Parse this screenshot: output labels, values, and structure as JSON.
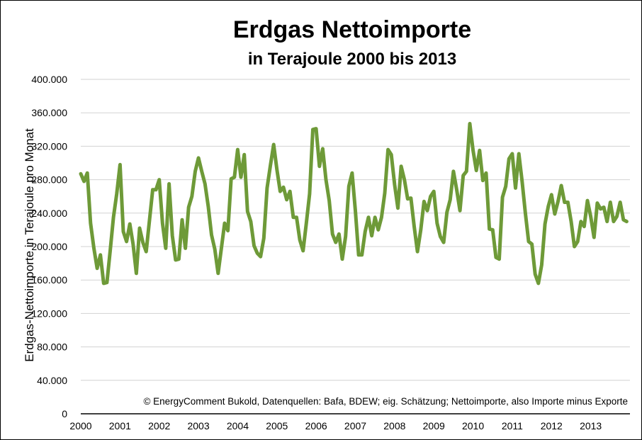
{
  "chart_data": {
    "type": "line",
    "title": "Erdgas Nettoimporte",
    "subtitle": "in Terajoule 2000 bis 2013",
    "ylabel": "Erdgas-Nettoimporte in Terajoule pro Monat",
    "xlabel": "",
    "ylim": [
      0,
      400000
    ],
    "yticks": [
      0,
      40000,
      80000,
      120000,
      160000,
      200000,
      240000,
      280000,
      320000,
      360000,
      400000
    ],
    "ytick_labels": [
      "0",
      "40.000",
      "80.000",
      "120.000",
      "160.000",
      "200.000",
      "240.000",
      "280.000",
      "320.000",
      "360.000",
      "400.000"
    ],
    "xlim": [
      2000,
      2014
    ],
    "xtick_labels": [
      "2000",
      "2001",
      "2002",
      "2003",
      "2004",
      "2005",
      "2006",
      "2007",
      "2008",
      "2009",
      "2010",
      "2011",
      "2012",
      "2013"
    ],
    "grid": "horizontal",
    "annotation": "© EnergyComment Bukold, Datenquellen: Bafa, BDEW; eig. Schätzung; Nettoimporte, also Importe minus Exporte",
    "series_color": "#6e9a38",
    "series": [
      {
        "values": [
          287000,
          278000,
          288000,
          228000,
          198000,
          174000,
          190000,
          156000,
          157000,
          195000,
          235000,
          263000,
          298000,
          218000,
          206000,
          227000,
          203000,
          168000,
          222000,
          205000,
          194000,
          231000,
          268000,
          268000,
          280000,
          228000,
          198000,
          275000,
          213000,
          184000,
          185000,
          232000,
          198000,
          247000,
          260000,
          290000,
          306000,
          290000,
          275000,
          248000,
          214000,
          197000,
          168000,
          198000,
          228000,
          219000,
          281000,
          283000,
          316000,
          283000,
          310000,
          242000,
          230000,
          201000,
          192000,
          188000,
          210000,
          270000,
          297000,
          322000,
          292000,
          266000,
          271000,
          256000,
          266000,
          235000,
          235000,
          208000,
          195000,
          228000,
          263000,
          340000,
          341000,
          296000,
          317000,
          280000,
          255000,
          215000,
          205000,
          215000,
          185000,
          212000,
          272000,
          288000,
          243000,
          190000,
          190000,
          218000,
          235000,
          213000,
          235000,
          220000,
          235000,
          264000,
          316000,
          310000,
          274000,
          246000,
          296000,
          280000,
          257000,
          258000,
          224000,
          194000,
          220000,
          254000,
          243000,
          260000,
          266000,
          228000,
          212000,
          205000,
          241000,
          256000,
          290000,
          268000,
          243000,
          285000,
          290000,
          347000,
          315000,
          291000,
          315000,
          279000,
          288000,
          221000,
          220000,
          187000,
          185000,
          259000,
          272000,
          305000,
          311000,
          270000,
          311000,
          278000,
          240000,
          206000,
          203000,
          167000,
          156000,
          178000,
          227000,
          248000,
          262000,
          239000,
          254000,
          273000,
          253000,
          253000,
          230000,
          200000,
          206000,
          230000,
          224000,
          255000,
          236000,
          211000,
          252000,
          245000,
          247000,
          230000,
          253000,
          230000,
          236000,
          253000,
          232000,
          230000
        ]
      }
    ]
  }
}
